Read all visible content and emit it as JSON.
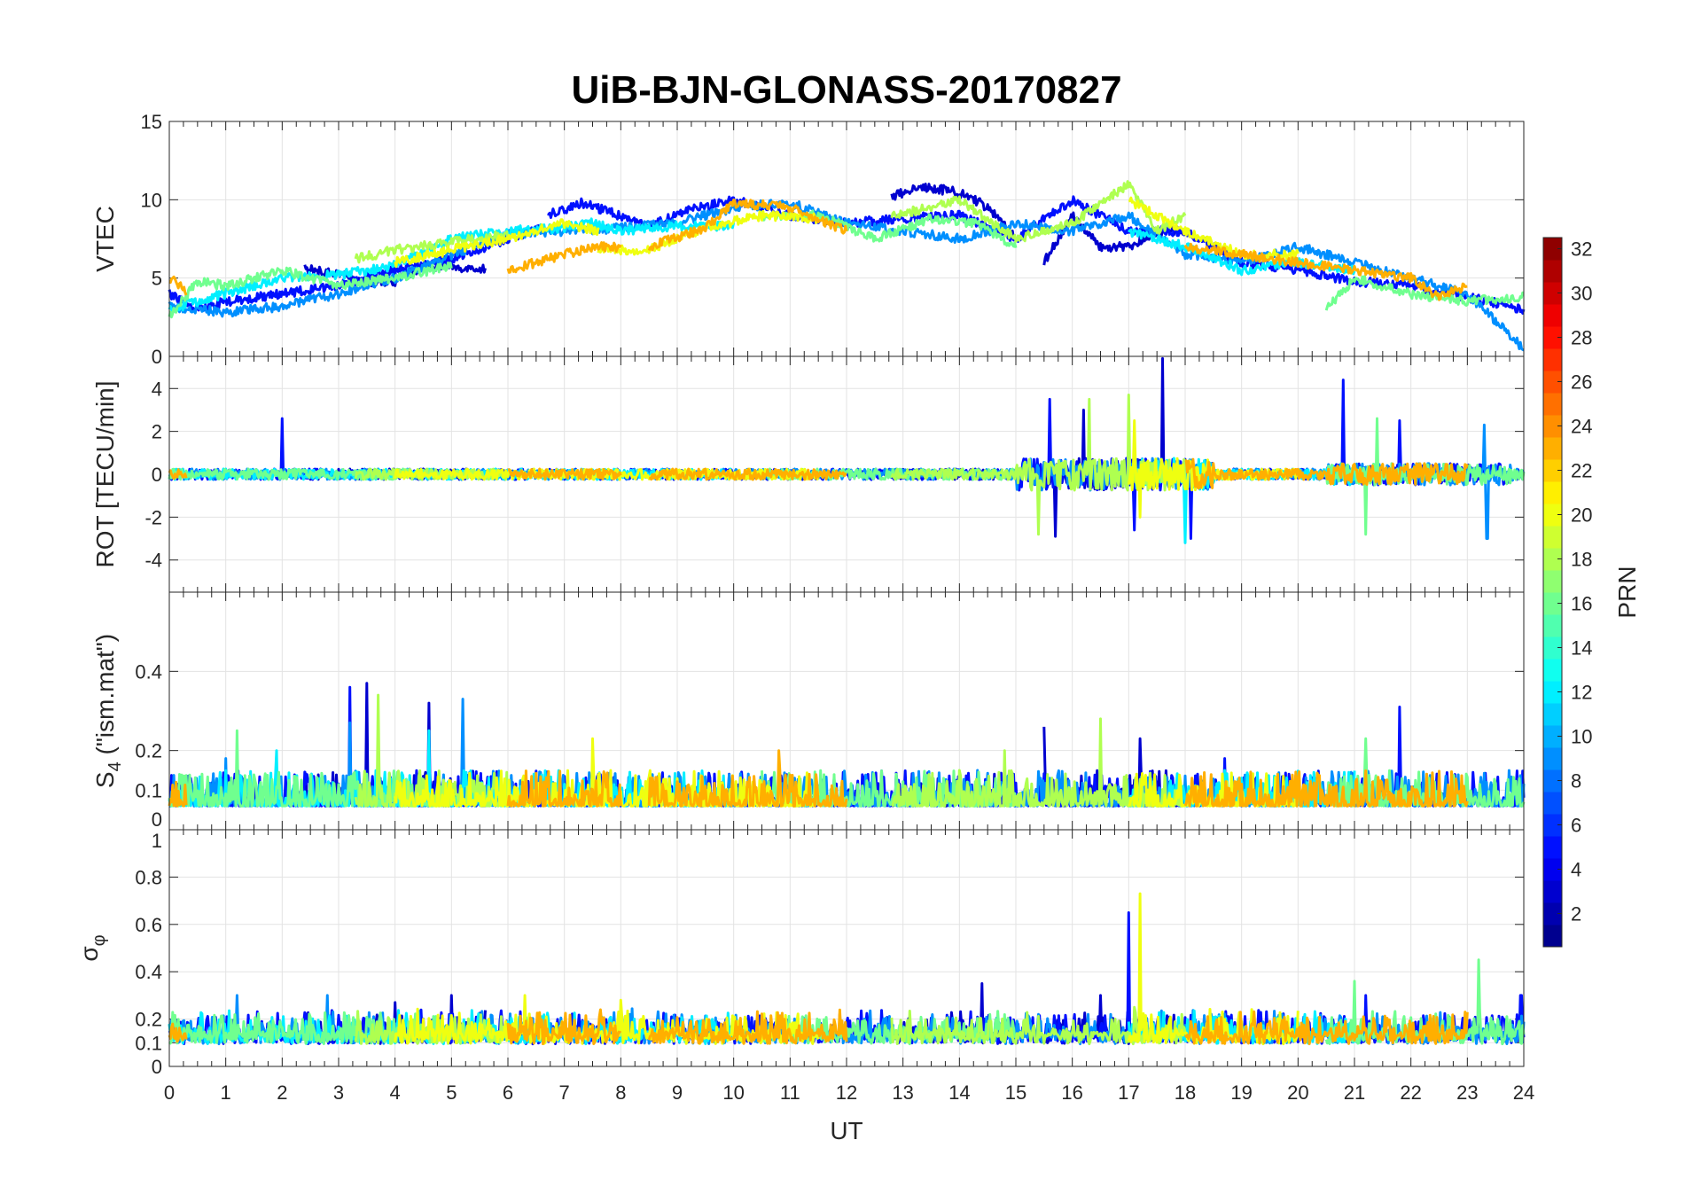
{
  "chart_data": {
    "type": "line",
    "title": "UiB-BJN-GLONASS-20170827",
    "xlabel": "UT",
    "xlim": [
      0,
      24
    ],
    "xticks": [
      0,
      1,
      2,
      3,
      4,
      5,
      6,
      7,
      8,
      9,
      10,
      11,
      12,
      13,
      14,
      15,
      16,
      17,
      18,
      19,
      20,
      21,
      22,
      23,
      24
    ],
    "grid": true,
    "panels": [
      {
        "key": "vtec",
        "ylabel": "VTEC",
        "ylim": [
          0,
          15
        ],
        "yticks": [
          0,
          5,
          10,
          15
        ]
      },
      {
        "key": "rot",
        "ylabel": "ROT [TECU/min]",
        "ylim": [
          -5.5,
          5.5
        ],
        "yticks": [
          -4,
          -2,
          0,
          2,
          4
        ]
      },
      {
        "key": "s4",
        "ylabel": "S",
        "ylabel_sub": "4",
        "ylabel_rest": " (\"ism.mat\")",
        "ylim": [
          0,
          0.6
        ],
        "yticks": [
          0,
          0.1,
          0.2,
          0.4
        ]
      },
      {
        "key": "sigma",
        "ylabel": "σ",
        "ylabel_sub": "φ",
        "ylim": [
          0,
          1
        ],
        "yticks": [
          0,
          0.1,
          0.2,
          0.4,
          0.6,
          0.8,
          1
        ]
      }
    ],
    "colorbar": {
      "label": "PRN",
      "range": [
        1,
        32
      ],
      "ticks": [
        2,
        4,
        6,
        8,
        10,
        12,
        14,
        16,
        18,
        20,
        22,
        24,
        26,
        28,
        30,
        32
      ],
      "colormap": "jet"
    },
    "series": [
      {
        "prn": 3,
        "vtec": [
          [
            [
              2.4,
              5.6
            ],
            [
              3,
              5.2
            ],
            [
              3.5,
              4.7
            ],
            [
              4,
              4.8
            ],
            [
              4.5,
              5.8
            ],
            [
              5.6,
              5.6
            ]
          ],
          [
            [
              12.8,
              10.2
            ],
            [
              13.3,
              10.8
            ],
            [
              13.8,
              10.6
            ],
            [
              14.2,
              10.2
            ],
            [
              14.6,
              9.2
            ],
            [
              15,
              7.5
            ]
          ],
          [
            [
              15.5,
              6
            ],
            [
              16,
              9
            ],
            [
              16.5,
              7
            ],
            [
              17,
              7
            ],
            [
              17.5,
              8
            ],
            [
              18,
              8
            ]
          ]
        ],
        "rot_spikes": [
          [
            15.7,
            -2.9
          ],
          [
            17.6,
            5.4
          ],
          [
            16.2,
            3
          ]
        ],
        "s4_spikes": [
          [
            3.5,
            0.37
          ],
          [
            4.6,
            0.32
          ],
          [
            15.5,
            0.26
          ],
          [
            17.2,
            0.23
          ]
        ],
        "sigma_spikes": [
          [
            4,
            0.27
          ],
          [
            5,
            0.3
          ],
          [
            14.4,
            0.35
          ],
          [
            16.5,
            0.3
          ],
          [
            17.2,
            0.3
          ]
        ]
      },
      {
        "prn": 5,
        "vtec": [
          [
            [
              0,
              4
            ],
            [
              0.5,
              3
            ],
            [
              1,
              3.5
            ],
            [
              2,
              4
            ],
            [
              3,
              4.5
            ],
            [
              4,
              5.5
            ],
            [
              5,
              6.2
            ],
            [
              6,
              7.5
            ],
            [
              6.6,
              8.2
            ]
          ],
          [
            [
              6.7,
              9
            ],
            [
              7.3,
              9.8
            ],
            [
              7.8,
              9.2
            ],
            [
              8.5,
              8.3
            ],
            [
              9.2,
              9.3
            ],
            [
              10,
              10
            ],
            [
              11,
              9
            ],
            [
              12,
              8.5
            ],
            [
              13,
              8.8
            ],
            [
              14,
              9
            ],
            [
              15,
              7.5
            ],
            [
              16,
              10
            ],
            [
              17,
              8
            ],
            [
              18,
              8
            ],
            [
              19,
              6
            ],
            [
              20,
              5.5
            ],
            [
              21,
              4.8
            ],
            [
              22,
              4.5
            ],
            [
              23,
              3.8
            ],
            [
              24,
              3
            ]
          ]
        ],
        "rot_spikes": [
          [
            2,
            2.6
          ],
          [
            15.6,
            3.5
          ],
          [
            20.8,
            4.4
          ],
          [
            21.8,
            2.5
          ],
          [
            18.1,
            -3
          ],
          [
            17.1,
            -2.6
          ]
        ],
        "s4_spikes": [
          [
            3.2,
            0.36
          ],
          [
            21.8,
            0.31
          ],
          [
            18.7,
            0.18
          ]
        ],
        "sigma_spikes": [
          [
            17,
            0.65
          ],
          [
            21.2,
            0.3
          ],
          [
            23.95,
            0.3
          ],
          [
            12.2,
            0.2
          ]
        ]
      },
      {
        "prn": 9,
        "vtec": [
          [
            [
              0,
              3.2
            ],
            [
              1,
              2.8
            ],
            [
              2,
              3.2
            ],
            [
              3,
              4
            ],
            [
              4,
              5
            ],
            [
              5,
              6.5
            ],
            [
              6,
              7.8
            ],
            [
              7,
              8
            ],
            [
              8,
              8.2
            ],
            [
              9,
              8.5
            ],
            [
              10,
              9.5
            ],
            [
              11,
              9.8
            ],
            [
              12,
              8.5
            ],
            [
              13,
              8
            ],
            [
              14,
              7.5
            ],
            [
              15,
              8.5
            ],
            [
              16,
              8
            ],
            [
              17,
              9
            ],
            [
              18,
              6.5
            ],
            [
              19,
              6
            ],
            [
              20,
              7
            ],
            [
              21,
              6
            ],
            [
              22,
              5
            ],
            [
              23,
              4
            ],
            [
              24,
              0.5
            ]
          ]
        ],
        "rot_spikes": [
          [
            23.3,
            2.3
          ],
          [
            23.35,
            -3
          ]
        ],
        "s4_spikes": [
          [
            5.2,
            0.33
          ],
          [
            3.2,
            0.27
          ],
          [
            1,
            0.18
          ]
        ],
        "sigma_spikes": [
          [
            2.8,
            0.3
          ],
          [
            1.2,
            0.3
          ]
        ]
      },
      {
        "prn": 12,
        "vtec": [
          [
            [
              0,
              3
            ],
            [
              1,
              4
            ],
            [
              2,
              5
            ],
            [
              3,
              5.2
            ],
            [
              4,
              5.8
            ],
            [
              5,
              7.5
            ],
            [
              6,
              8
            ],
            [
              7,
              8.2
            ],
            [
              7.5,
              8.5
            ],
            [
              8,
              8
            ],
            [
              9,
              8.3
            ],
            [
              10,
              8.3
            ]
          ],
          [
            [
              17,
              8
            ],
            [
              18,
              7
            ],
            [
              19,
              5.5
            ],
            [
              20,
              6
            ],
            [
              21,
              5.5
            ]
          ]
        ],
        "rot_spikes": [
          [
            18,
            -3.2
          ]
        ],
        "s4_spikes": [
          [
            4.6,
            0.25
          ],
          [
            1.9,
            0.2
          ]
        ],
        "sigma_spikes": []
      },
      {
        "prn": 16,
        "vtec": [
          [
            [
              0,
              2.5
            ],
            [
              0.5,
              4.8
            ],
            [
              1,
              4.5
            ],
            [
              2,
              5.5
            ],
            [
              3,
              4.5
            ],
            [
              4,
              5
            ],
            [
              5,
              5.8
            ]
          ],
          [
            [
              10.5,
              9
            ],
            [
              11.5,
              9
            ],
            [
              12.5,
              7.5
            ],
            [
              13.5,
              8.8
            ],
            [
              14.3,
              8.5
            ],
            [
              15,
              7
            ]
          ],
          [
            [
              20.5,
              3
            ],
            [
              21,
              5
            ],
            [
              22,
              4
            ],
            [
              23,
              3.5
            ],
            [
              24,
              3.8
            ]
          ]
        ],
        "rot_spikes": [
          [
            21.2,
            -2.8
          ],
          [
            21.4,
            2.6
          ]
        ],
        "s4_spikes": [
          [
            1.2,
            0.25
          ],
          [
            21.2,
            0.23
          ]
        ],
        "sigma_spikes": [
          [
            23.2,
            0.45
          ],
          [
            21,
            0.36
          ]
        ]
      },
      {
        "prn": 18,
        "vtec": [
          [
            [
              3.3,
              6.2
            ],
            [
              4,
              6.8
            ],
            [
              5,
              7.3
            ],
            [
              6,
              7.8
            ]
          ],
          [
            [
              12.8,
              9
            ],
            [
              13.5,
              9.5
            ],
            [
              14,
              10
            ],
            [
              15,
              7.5
            ],
            [
              16,
              8.5
            ],
            [
              17,
              11
            ],
            [
              17.5,
              8
            ],
            [
              18,
              9
            ]
          ]
        ],
        "rot_spikes": [
          [
            16.3,
            3.5
          ],
          [
            17,
            3.7
          ],
          [
            15.4,
            -2.8
          ]
        ],
        "s4_spikes": [
          [
            3.7,
            0.34
          ],
          [
            16.5,
            0.28
          ],
          [
            14.8,
            0.2
          ]
        ],
        "sigma_spikes": [
          [
            17.1,
            0.25
          ]
        ]
      },
      {
        "prn": 20,
        "vtec": [
          [
            [
              4,
              6
            ],
            [
              5,
              6.8
            ],
            [
              6,
              7.5
            ],
            [
              7,
              8.5
            ],
            [
              7.6,
              8
            ]
          ],
          [
            [
              7.6,
              6.8
            ],
            [
              8.5,
              6.8
            ],
            [
              9.5,
              8.2
            ],
            [
              10.5,
              9
            ],
            [
              11.5,
              8.8
            ]
          ],
          [
            [
              17,
              10
            ],
            [
              18,
              8
            ],
            [
              19,
              6.5
            ],
            [
              20,
              6.5
            ]
          ]
        ],
        "rot_spikes": [
          [
            17.2,
            -2
          ],
          [
            17.1,
            2.5
          ]
        ],
        "s4_spikes": [
          [
            7.5,
            0.23
          ],
          [
            13,
            0.18
          ]
        ],
        "sigma_spikes": [
          [
            17.2,
            0.73
          ],
          [
            6.3,
            0.3
          ],
          [
            8,
            0.28
          ]
        ]
      },
      {
        "prn": 23,
        "vtec": [
          [
            [
              0,
              5
            ],
            [
              0.3,
              4.2
            ]
          ],
          [
            [
              6,
              5.5
            ],
            [
              7,
              6.5
            ],
            [
              7.5,
              7
            ],
            [
              8,
              7
            ]
          ],
          [
            [
              8.5,
              7
            ],
            [
              9.5,
              8.2
            ],
            [
              10,
              9.8
            ],
            [
              11,
              9.5
            ],
            [
              12,
              8
            ]
          ],
          [
            [
              18,
              7
            ],
            [
              19,
              6.5
            ],
            [
              20,
              6
            ],
            [
              21,
              5.5
            ],
            [
              22,
              5
            ],
            [
              22.5,
              3.8
            ],
            [
              23,
              4.5
            ]
          ]
        ],
        "rot_spikes": [
          [
            1.8,
            1
          ]
        ],
        "s4_spikes": [
          [
            10.8,
            0.2
          ],
          [
            14,
            0.19
          ],
          [
            23.95,
            0.12
          ]
        ],
        "sigma_spikes": [
          [
            1.2,
            0.28
          ],
          [
            12.2,
            0.34
          ]
        ]
      }
    ]
  }
}
